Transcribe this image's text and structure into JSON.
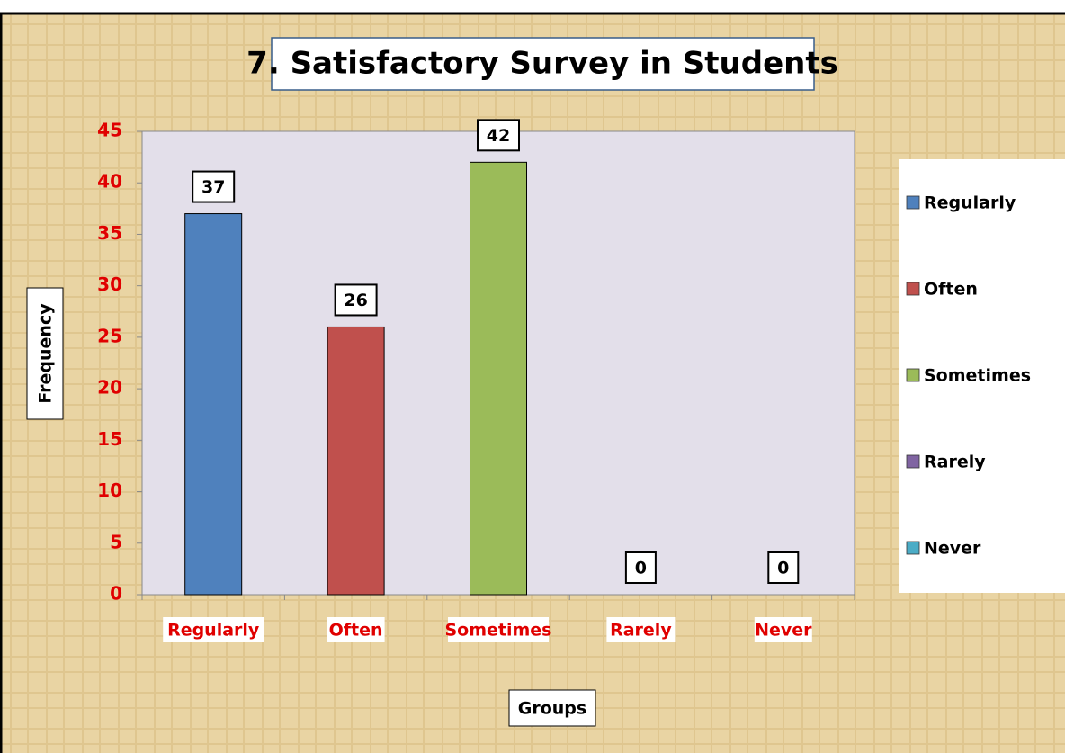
{
  "chart_data": {
    "type": "bar",
    "title": "7. Satisfactory Survey in Students",
    "categories": [
      "Regularly",
      "Often",
      "Sometimes",
      "Rarely",
      "Never"
    ],
    "values": [
      37,
      26,
      42,
      0,
      0
    ],
    "colors": [
      "#4f81bd",
      "#c0504d",
      "#9bbb59",
      "#8064a2",
      "#4bacc6"
    ],
    "ylim": [
      0,
      45
    ],
    "yticks": [
      0,
      5,
      10,
      15,
      20,
      25,
      30,
      35,
      40,
      45
    ],
    "ylabel": "Frequency",
    "xlabel": "Groups",
    "legend": "right"
  }
}
